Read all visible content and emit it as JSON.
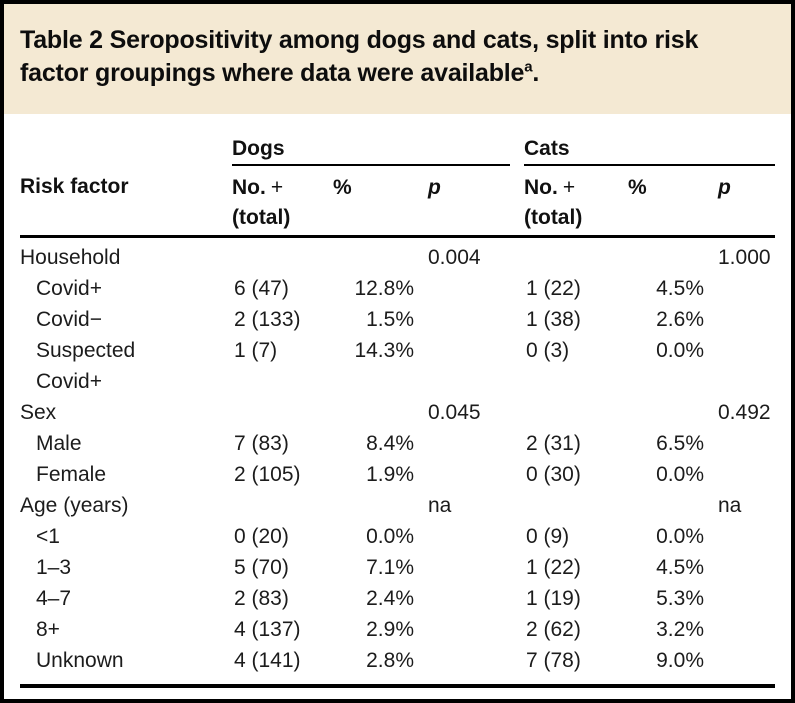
{
  "colors": {
    "title_background": "#f4e9d3",
    "border": "#000000",
    "text": "#1c1c1c"
  },
  "title": {
    "text": "Table 2 Seropositivity among dogs and cats, split into risk factor groupings where data were available",
    "footnote_marker": "a",
    "suffix": "."
  },
  "table": {
    "group_headers": [
      {
        "label": "Dogs"
      },
      {
        "label": "Cats"
      }
    ],
    "column_headers": {
      "risk_factor": "Risk factor",
      "no": "No.",
      "plus": "+",
      "total": "(total)",
      "percent": "%",
      "p": "p"
    },
    "rows": [
      {
        "type": "group",
        "label": "Household",
        "dogs": {
          "no": "",
          "pct": "",
          "p": "0.004"
        },
        "cats": {
          "no": "",
          "pct": "",
          "p": "1.000"
        }
      },
      {
        "type": "sub",
        "label": "Covid+",
        "dogs": {
          "no": "6 (47)",
          "pct": "12.8%",
          "p": ""
        },
        "cats": {
          "no": "1 (22)",
          "pct": "4.5%",
          "p": ""
        }
      },
      {
        "type": "sub",
        "label": "Covid−",
        "dogs": {
          "no": "2 (133)",
          "pct": "1.5%",
          "p": ""
        },
        "cats": {
          "no": "1 (38)",
          "pct": "2.6%",
          "p": ""
        }
      },
      {
        "type": "sub",
        "label": "Suspected\nCovid+",
        "dogs": {
          "no": "1 (7)",
          "pct": "14.3%",
          "p": ""
        },
        "cats": {
          "no": "0 (3)",
          "pct": "0.0%",
          "p": ""
        }
      },
      {
        "type": "group",
        "label": "Sex",
        "dogs": {
          "no": "",
          "pct": "",
          "p": "0.045"
        },
        "cats": {
          "no": "",
          "pct": "",
          "p": "0.492"
        }
      },
      {
        "type": "sub",
        "label": "Male",
        "dogs": {
          "no": "7 (83)",
          "pct": "8.4%",
          "p": ""
        },
        "cats": {
          "no": "2 (31)",
          "pct": "6.5%",
          "p": ""
        }
      },
      {
        "type": "sub",
        "label": "Female",
        "dogs": {
          "no": "2 (105)",
          "pct": "1.9%",
          "p": ""
        },
        "cats": {
          "no": "0 (30)",
          "pct": "0.0%",
          "p": ""
        }
      },
      {
        "type": "group",
        "label": "Age (years)",
        "dogs": {
          "no": "",
          "pct": "",
          "p": "na"
        },
        "cats": {
          "no": "",
          "pct": "",
          "p": "na"
        }
      },
      {
        "type": "sub",
        "label": "<1",
        "dogs": {
          "no": "0 (20)",
          "pct": "0.0%",
          "p": ""
        },
        "cats": {
          "no": "0 (9)",
          "pct": "0.0%",
          "p": ""
        }
      },
      {
        "type": "sub",
        "label": "1–3",
        "dogs": {
          "no": "5 (70)",
          "pct": "7.1%",
          "p": ""
        },
        "cats": {
          "no": "1 (22)",
          "pct": "4.5%",
          "p": ""
        }
      },
      {
        "type": "sub",
        "label": "4–7",
        "dogs": {
          "no": "2 (83)",
          "pct": "2.4%",
          "p": ""
        },
        "cats": {
          "no": "1 (19)",
          "pct": "5.3%",
          "p": ""
        }
      },
      {
        "type": "sub",
        "label": "8+",
        "dogs": {
          "no": "4 (137)",
          "pct": "2.9%",
          "p": ""
        },
        "cats": {
          "no": "2 (62)",
          "pct": "3.2%",
          "p": ""
        }
      },
      {
        "type": "sub",
        "label": "Unknown",
        "dogs": {
          "no": "4 (141)",
          "pct": "2.8%",
          "p": ""
        },
        "cats": {
          "no": "7 (78)",
          "pct": "9.0%",
          "p": ""
        }
      }
    ]
  }
}
